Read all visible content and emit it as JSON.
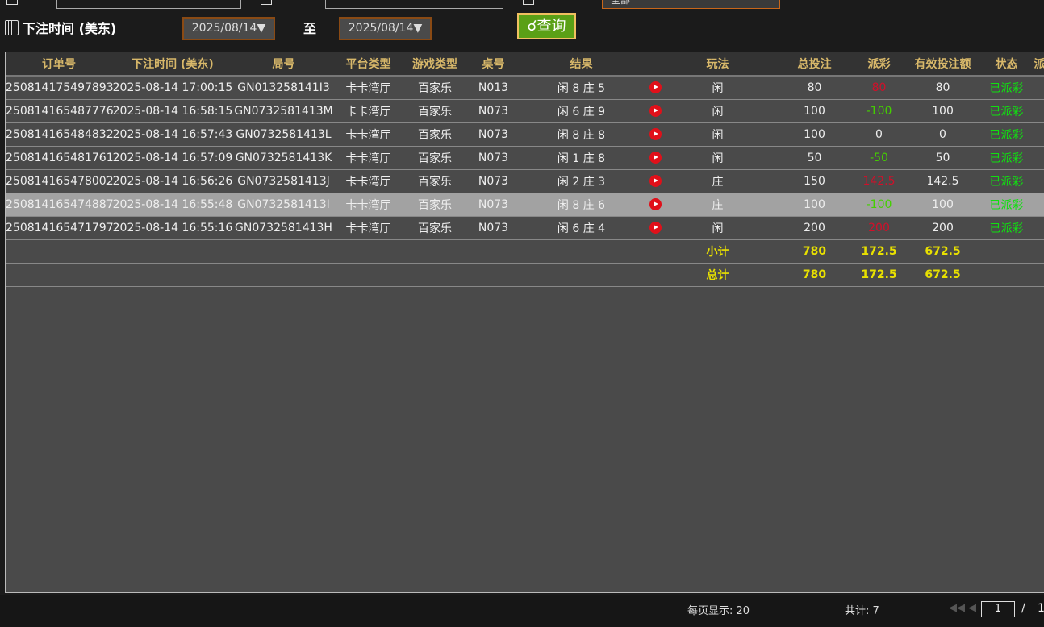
{
  "filters": {
    "top_select": "全部",
    "time_label": "下注时间 (美东)",
    "date_from": "2025/08/14▼",
    "to_label": "至",
    "date_to": "2025/08/14▼",
    "query_button": "查询"
  },
  "table": {
    "headers": [
      "订单号",
      "下注时间 (美东)",
      "局号",
      "平台类型",
      "游戏类型",
      "桌号",
      "结果",
      "",
      "玩法",
      "总投注",
      "派彩",
      "有效投注额",
      "状态",
      "派"
    ],
    "rows": [
      {
        "order": "250814175497893",
        "time": "2025-08-14 17:00:15",
        "round": "GN013258141I3",
        "platform": "卡卡湾厅",
        "game": "百家乐",
        "table": "N013",
        "result": "闲 8 庄 5",
        "bet_type": "闲",
        "total_bet": "80",
        "payout": "80",
        "payout_color": "red",
        "valid_bet": "80",
        "status": "已派彩"
      },
      {
        "order": "250814165487776",
        "time": "2025-08-14 16:58:15",
        "round": "GN0732581413M",
        "platform": "卡卡湾厅",
        "game": "百家乐",
        "table": "N073",
        "result": "闲 6 庄 9",
        "bet_type": "闲",
        "total_bet": "100",
        "payout": "-100",
        "payout_color": "green",
        "valid_bet": "100",
        "status": "已派彩"
      },
      {
        "order": "250814165484832",
        "time": "2025-08-14 16:57:43",
        "round": "GN0732581413L",
        "platform": "卡卡湾厅",
        "game": "百家乐",
        "table": "N073",
        "result": "闲 8 庄 8",
        "bet_type": "闲",
        "total_bet": "100",
        "payout": "0",
        "payout_color": "white",
        "valid_bet": "0",
        "status": "已派彩"
      },
      {
        "order": "250814165481761",
        "time": "2025-08-14 16:57:09",
        "round": "GN0732581413K",
        "platform": "卡卡湾厅",
        "game": "百家乐",
        "table": "N073",
        "result": "闲 1 庄 8",
        "bet_type": "闲",
        "total_bet": "50",
        "payout": "-50",
        "payout_color": "green",
        "valid_bet": "50",
        "status": "已派彩"
      },
      {
        "order": "250814165478002",
        "time": "2025-08-14 16:56:26",
        "round": "GN0732581413J",
        "platform": "卡卡湾厅",
        "game": "百家乐",
        "table": "N073",
        "result": "闲 2 庄 3",
        "bet_type": "庄",
        "total_bet": "150",
        "payout": "142.5",
        "payout_color": "red",
        "valid_bet": "142.5",
        "status": "已派彩"
      },
      {
        "order": "250814165474887",
        "time": "2025-08-14 16:55:48",
        "round": "GN0732581413I",
        "platform": "卡卡湾厅",
        "game": "百家乐",
        "table": "N073",
        "result": "闲 8 庄 6",
        "bet_type": "庄",
        "total_bet": "100",
        "payout": "-100",
        "payout_color": "green",
        "valid_bet": "100",
        "status": "已派彩",
        "selected": true
      },
      {
        "order": "250814165471797",
        "time": "2025-08-14 16:55:16",
        "round": "GN0732581413H",
        "platform": "卡卡湾厅",
        "game": "百家乐",
        "table": "N073",
        "result": "闲 6 庄 4",
        "bet_type": "闲",
        "total_bet": "200",
        "payout": "200",
        "payout_color": "red",
        "valid_bet": "200",
        "status": "已派彩"
      }
    ],
    "subtotal": {
      "label": "小计",
      "total_bet": "780",
      "payout": "172.5",
      "valid_bet": "672.5"
    },
    "total": {
      "label": "总计",
      "total_bet": "780",
      "payout": "172.5",
      "valid_bet": "672.5"
    }
  },
  "footer": {
    "page_size": "每页显示: 20",
    "count": "共计: 7",
    "page": "1",
    "separator": "/",
    "pages": "1"
  },
  "colors": {
    "accent": "#5aa016",
    "header_text": "#d8b86a",
    "sum_text": "#e8e000",
    "payout_red": "#d0102a",
    "payout_green": "#44d000",
    "status": "#10e010"
  }
}
